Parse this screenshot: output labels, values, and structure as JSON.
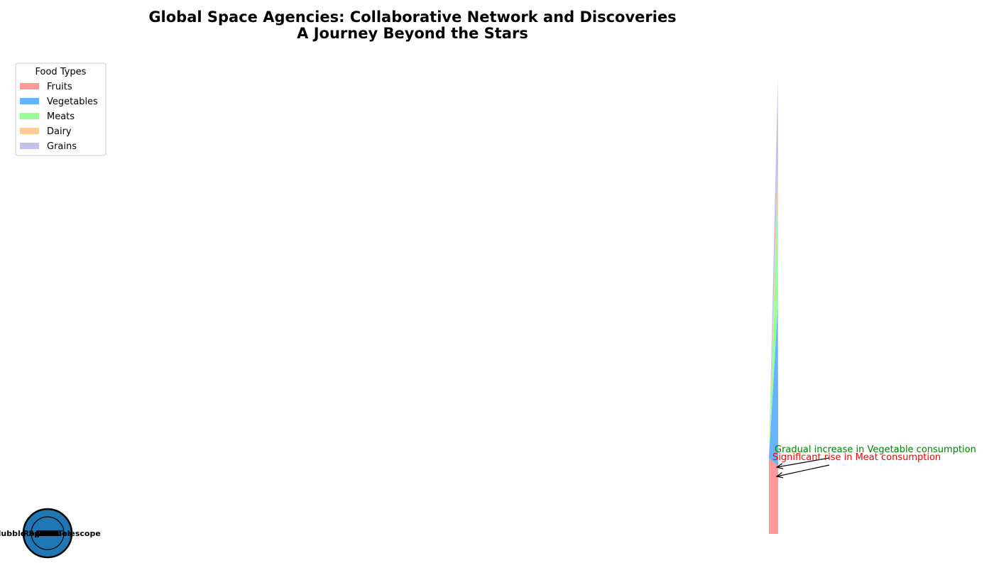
{
  "title": {
    "line1": "Global Space Agencies: Collaborative Network and Discoveries",
    "line2": "A Journey Beyond the Stars"
  },
  "legend": {
    "title": "Food Types",
    "placement": "upper-left"
  },
  "chart_data": [
    {
      "type": "area",
      "stacked": true,
      "series": [
        {
          "name": "Fruits",
          "color": "#ff9999",
          "values": [
            1,
            0.9,
            0.8
          ]
        },
        {
          "name": "Vegetables",
          "color": "#66b3ff",
          "values": [
            0,
            2.1,
            1.0
          ]
        },
        {
          "name": "Meats",
          "color": "#99ff99",
          "values": [
            0,
            1.5,
            1.2
          ]
        },
        {
          "name": "Dairy",
          "color": "#ffcc99",
          "values": [
            0,
            0.4,
            0.5
          ]
        },
        {
          "name": "Grains",
          "color": "#c2c2f0",
          "values": [
            0,
            1.1,
            1.5
          ]
        }
      ],
      "annotations": [
        {
          "text": "Gradual increase in Vegetable consumption",
          "color": "#008000"
        },
        {
          "text": "Significant rise in Meat consumption",
          "color": "#ff0000"
        }
      ]
    },
    {
      "type": "network",
      "node_color": "#1f77b4",
      "node_labels": [
        "NASA",
        "ESA",
        "Roscosmos",
        "JAXA",
        "ISRO",
        "CNSA",
        "Hubble Space Telescope"
      ]
    }
  ]
}
